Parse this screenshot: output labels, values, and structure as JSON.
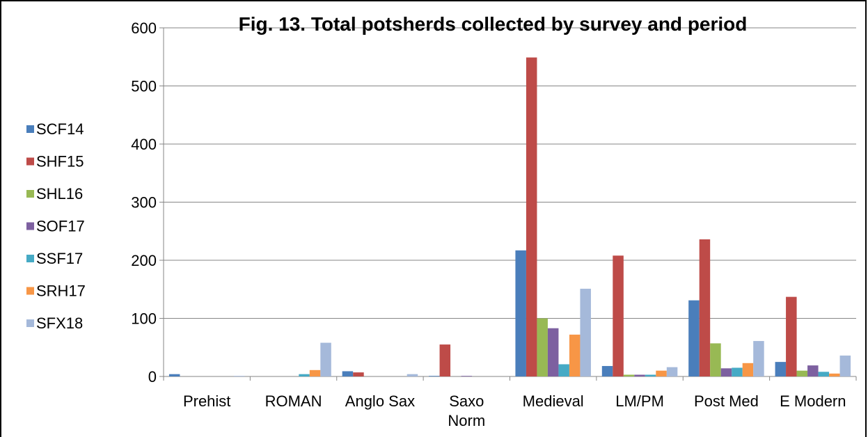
{
  "chart_data": {
    "type": "bar",
    "title": "Fig. 13.  Total potsherds collected by survey and period",
    "categories": [
      "Prehist",
      "ROMAN",
      "Anglo Sax",
      "Saxo Norm",
      "Medieval",
      "LM/PM",
      "Post Med",
      "E Modern"
    ],
    "category_lines": [
      [
        "Prehist"
      ],
      [
        "ROMAN"
      ],
      [
        "Anglo Sax"
      ],
      [
        "Saxo",
        "Norm"
      ],
      [
        "Medieval"
      ],
      [
        "LM/PM"
      ],
      [
        "Post Med"
      ],
      [
        "E Modern"
      ]
    ],
    "series": [
      {
        "name": "SCF14",
        "color": "#4a7ebb",
        "values": [
          4,
          0,
          9,
          1,
          217,
          18,
          131,
          25
        ]
      },
      {
        "name": "SHF15",
        "color": "#be4b48",
        "values": [
          0,
          0,
          7,
          55,
          549,
          208,
          236,
          137
        ]
      },
      {
        "name": "SHL16",
        "color": "#98b954",
        "values": [
          0,
          0,
          0,
          0,
          100,
          3,
          57,
          10
        ]
      },
      {
        "name": "SOF17",
        "color": "#7d60a0",
        "values": [
          0,
          0,
          0,
          1,
          83,
          3,
          14,
          19
        ]
      },
      {
        "name": "SSF17",
        "color": "#46aac5",
        "values": [
          0,
          4,
          0,
          0,
          21,
          3,
          15,
          8
        ]
      },
      {
        "name": "SRH17",
        "color": "#f79646",
        "values": [
          0,
          11,
          0,
          0,
          72,
          10,
          23,
          5
        ]
      },
      {
        "name": "SFX18",
        "color": "#a5b9da",
        "values": [
          1,
          58,
          4,
          0,
          151,
          16,
          61,
          36
        ]
      }
    ],
    "yticks": [
      "0",
      "100",
      "200",
      "300",
      "400",
      "500",
      "600"
    ],
    "ylim": [
      0,
      600
    ],
    "grid": true,
    "legend_position": "left"
  }
}
